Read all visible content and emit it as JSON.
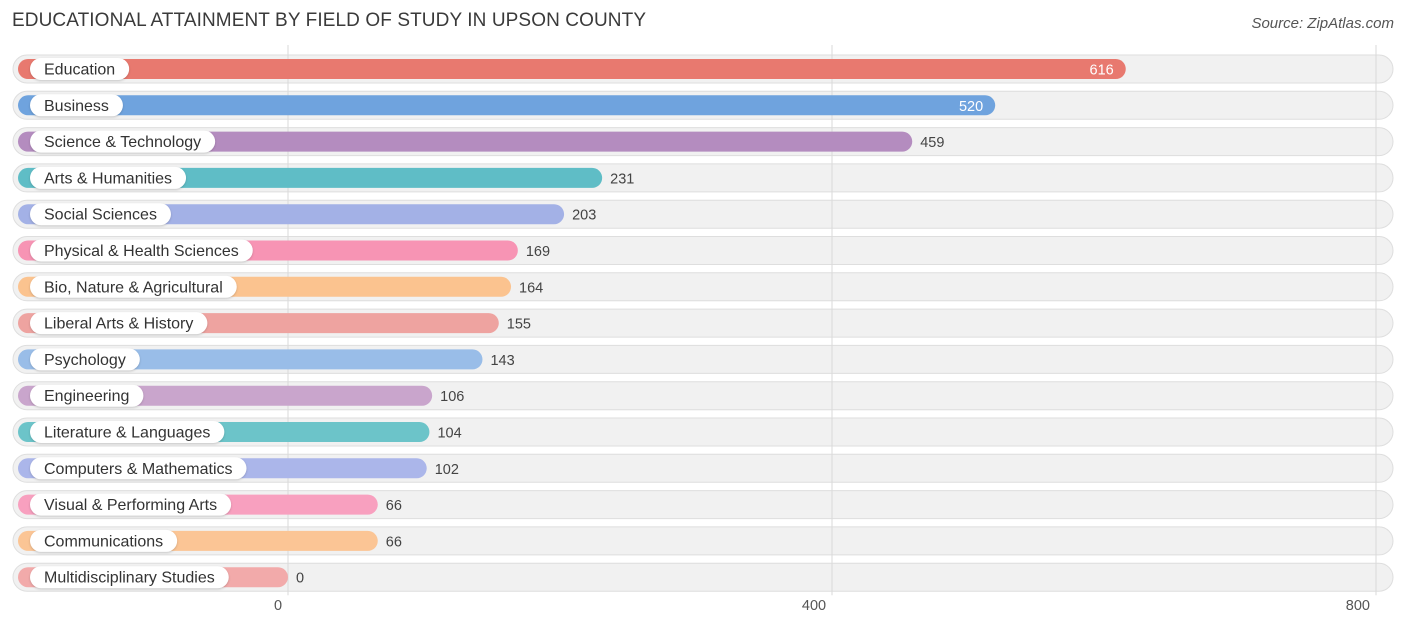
{
  "title": "EDUCATIONAL ATTAINMENT BY FIELD OF STUDY IN UPSON COUNTY",
  "source": "Source: ZipAtlas.com",
  "chart_data": {
    "type": "bar",
    "orientation": "horizontal",
    "categories": [
      "Education",
      "Business",
      "Science & Technology",
      "Arts & Humanities",
      "Social Sciences",
      "Physical & Health Sciences",
      "Bio, Nature & Agricultural",
      "Liberal Arts & History",
      "Psychology",
      "Engineering",
      "Literature & Languages",
      "Computers & Mathematics",
      "Visual & Performing Arts",
      "Communications",
      "Multidisciplinary Studies"
    ],
    "values": [
      616,
      520,
      459,
      231,
      203,
      169,
      164,
      155,
      143,
      106,
      104,
      102,
      66,
      66,
      0
    ],
    "colors": [
      "#e8796f",
      "#6fa3de",
      "#b48cbf",
      "#5fbdc6",
      "#a3b1e6",
      "#f794b4",
      "#fbc38f",
      "#eea3a0",
      "#99bde8",
      "#c9a5cc",
      "#6cc4c9",
      "#abb6ea",
      "#f8a0bf",
      "#fbc595",
      "#f2aaaa"
    ],
    "xticks": [
      0,
      400,
      800
    ],
    "xlim": [
      0,
      800
    ],
    "grid": true
  }
}
